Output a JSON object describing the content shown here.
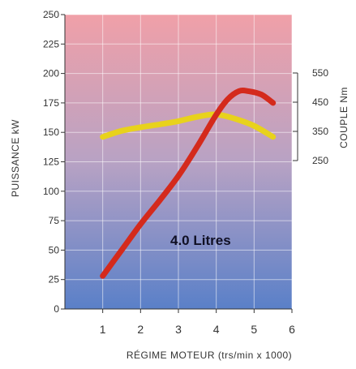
{
  "chart_data": {
    "type": "line",
    "title": "",
    "annotation": "4.0 Litres",
    "xlabel": "RÉGIME MOTEUR (trs/min x 1000)",
    "ylabel_left": "PUISSANCE kW",
    "ylabel_right": "COUPLE Nm",
    "xlim": [
      0,
      6
    ],
    "ylim_left": [
      0,
      250
    ],
    "ylim_right": [
      250,
      550
    ],
    "x_ticks": [
      "1",
      "2",
      "3",
      "4",
      "5",
      "6"
    ],
    "y_ticks_left": [
      "0",
      "25",
      "50",
      "75",
      "100",
      "125",
      "150",
      "175",
      "200",
      "225",
      "250"
    ],
    "y_ticks_right": [
      "250",
      "350",
      "450",
      "550"
    ],
    "grid": true,
    "background_gradient": [
      "#f0a0a8",
      "#5a80c8"
    ],
    "series": [
      {
        "axis": "left",
        "color": "#d42a1c",
        "x": [
          1.0,
          1.5,
          2.0,
          2.5,
          3.0,
          3.5,
          4.0,
          4.3,
          4.6,
          4.85,
          5.2,
          5.5
        ],
        "y": [
          28,
          50,
          72,
          92,
          113,
          138,
          165,
          178,
          185,
          185,
          182,
          175
        ]
      },
      {
        "axis": "right",
        "color": "#e8d21c",
        "x": [
          1.0,
          1.5,
          2.0,
          2.5,
          3.0,
          3.5,
          4.0,
          4.5,
          5.0,
          5.5
        ],
        "y": [
          331,
          352,
          364,
          374,
          385,
          400,
          408,
          393,
          369,
          331
        ]
      }
    ]
  }
}
